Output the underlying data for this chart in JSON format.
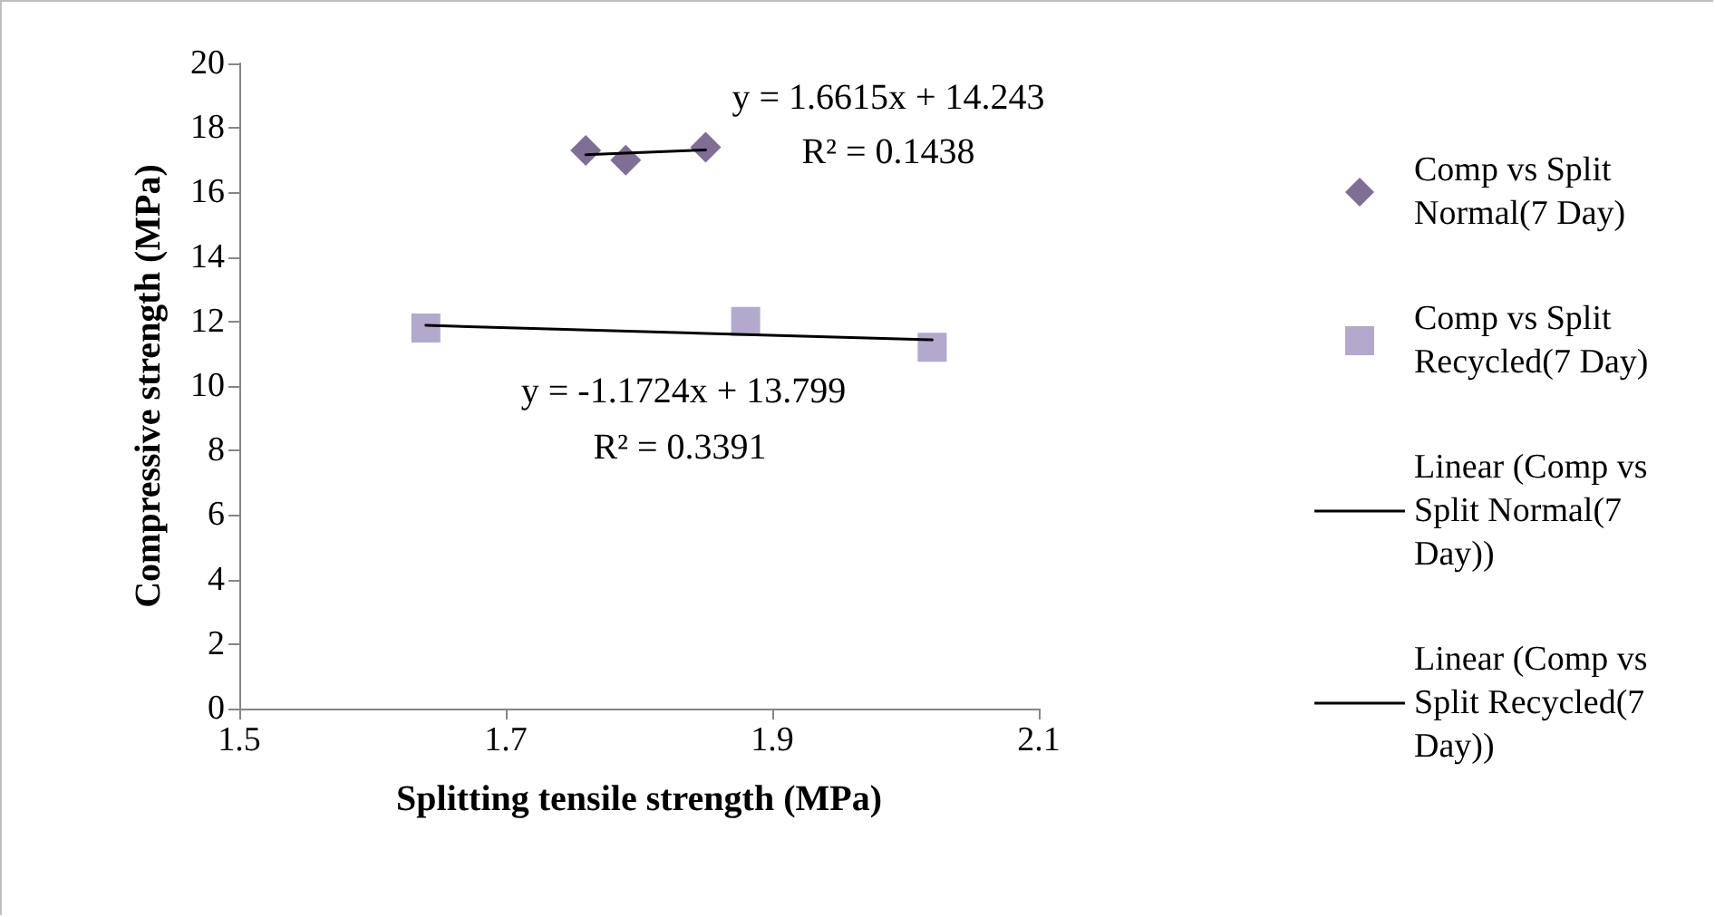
{
  "chart_data": {
    "type": "scatter",
    "xlabel": "Splitting tensile strength (MPa)",
    "ylabel": "Compressive strength (MPa)",
    "xlim": [
      1.5,
      2.1
    ],
    "xticks": [
      1.5,
      1.7,
      1.9,
      2.1
    ],
    "ylim": [
      0,
      20
    ],
    "yticks": [
      0,
      2,
      4,
      6,
      8,
      10,
      12,
      14,
      16,
      18,
      20
    ],
    "grid": false,
    "legend": "right",
    "series": [
      {
        "name": "Comp vs Split Normal(7 Day)",
        "color": "#604a7b",
        "marker": "diamond",
        "x": [
          1.76,
          1.79,
          1.85
        ],
        "values": [
          17.3,
          17.0,
          17.4
        ]
      },
      {
        "name": "Comp vs Split Recycled(7 Day)",
        "color": "#a094bf",
        "marker": "square",
        "x": [
          1.64,
          1.88,
          2.02
        ],
        "values": [
          11.8,
          12.0,
          11.2
        ]
      },
      {
        "name": "Linear (Comp vs Split Normal(7 Day))",
        "type": "line",
        "color": "#000000",
        "marker": "none",
        "x": [
          1.76,
          1.85
        ],
        "values": [
          17.17,
          17.32
        ]
      },
      {
        "name": "Linear (Comp vs Split Recycled(7 Day))",
        "type": "line",
        "color": "#000000",
        "marker": "none",
        "x": [
          1.64,
          2.02
        ],
        "values": [
          11.88,
          11.43
        ]
      }
    ],
    "annotations": [
      "y = 1.6615x + 14.243",
      "R² = 0.1438",
      "y = -1.1724x + 13.799",
      "R² = 0.3391"
    ]
  }
}
